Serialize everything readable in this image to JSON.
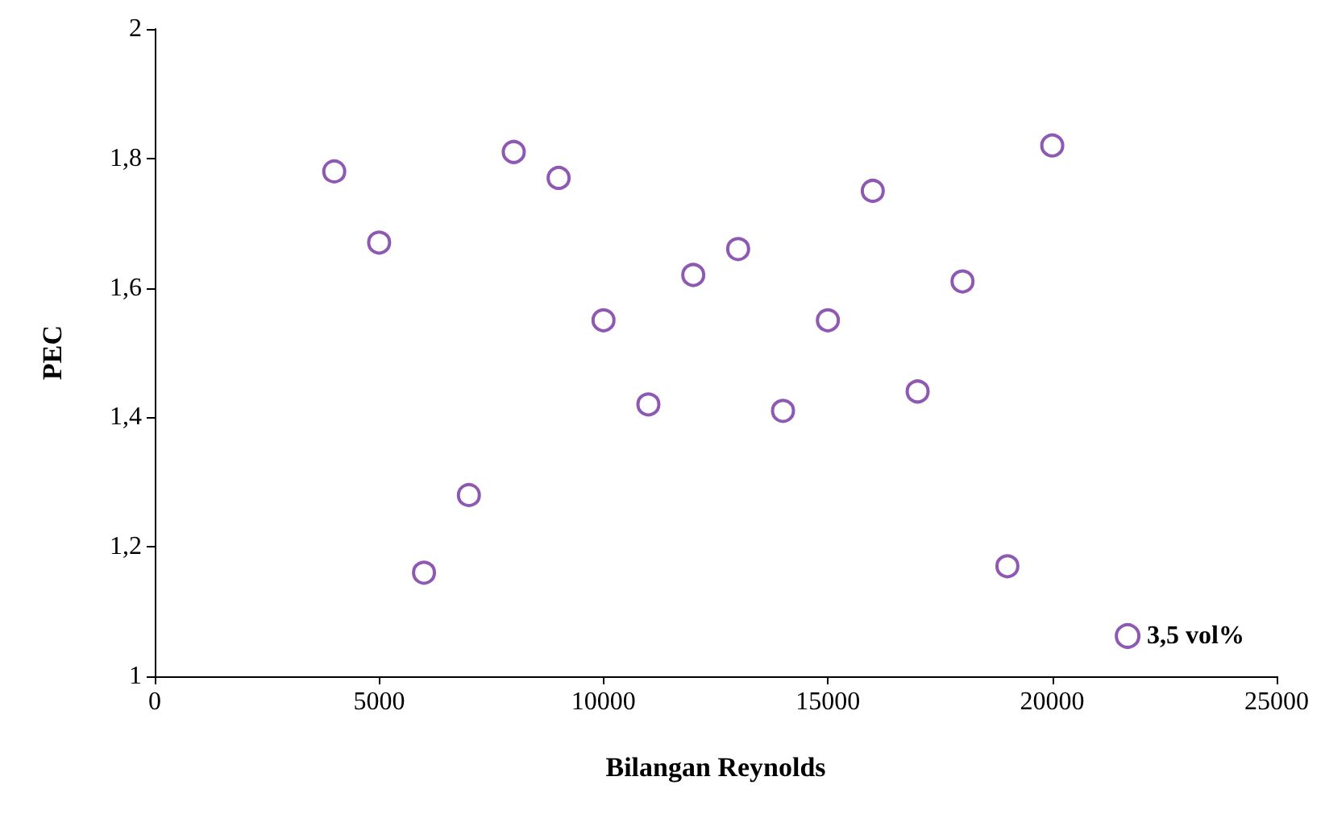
{
  "chart_data": {
    "type": "scatter",
    "xlabel": "Bilangan Reynolds",
    "ylabel": "PEC",
    "series": [
      {
        "name": "3,5 vol%",
        "color": "#7030a0",
        "x": [
          4000,
          5000,
          6000,
          7000,
          8000,
          9000,
          10000,
          11000,
          12000,
          13000,
          14000,
          15000,
          16000,
          17000,
          18000,
          19000,
          20000
        ],
        "values": [
          1.78,
          1.67,
          1.16,
          1.28,
          1.81,
          1.77,
          1.55,
          1.42,
          1.62,
          1.66,
          1.41,
          1.55,
          1.75,
          1.44,
          1.61,
          1.17,
          1.82
        ]
      }
    ],
    "xlim": [
      0,
      25000
    ],
    "xticks": [
      0,
      5000,
      10000,
      15000,
      20000,
      25000
    ],
    "ylim": [
      1,
      2
    ],
    "yticks": [
      1,
      {
        "value": 1.2,
        "label": "1,2"
      },
      {
        "value": 1.4,
        "label": "1,4"
      },
      {
        "value": 1.6,
        "label": "1,6"
      },
      {
        "value": 1.8,
        "label": "1,8"
      },
      2
    ],
    "marker": "circle",
    "grid": false,
    "legend": "bottom right"
  }
}
